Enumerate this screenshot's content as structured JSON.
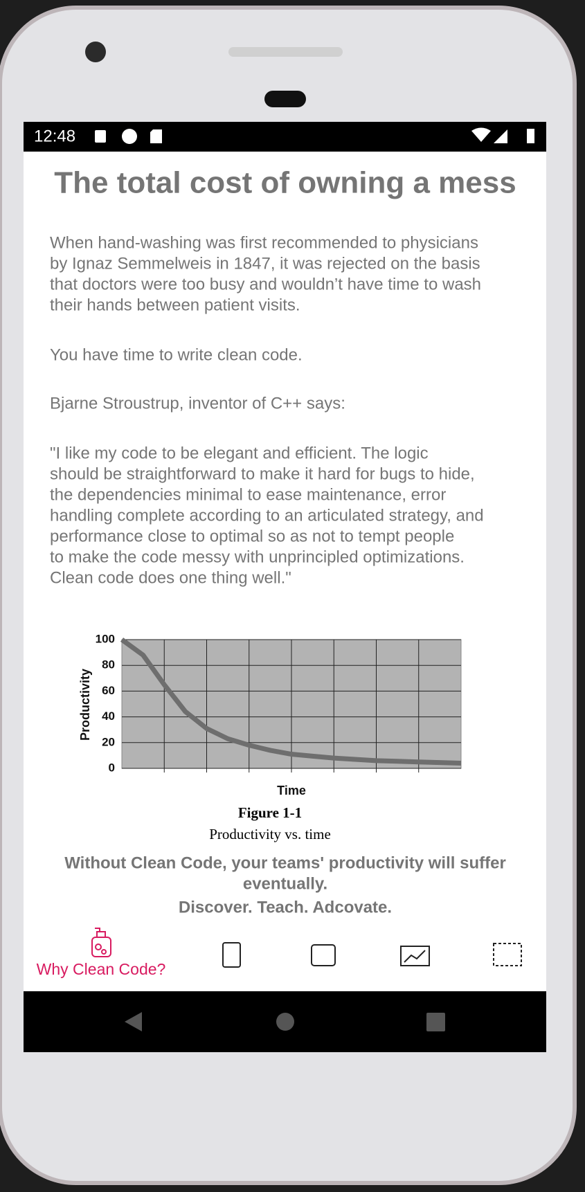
{
  "status_bar": {
    "time": "12:48"
  },
  "title": "The total cost of owning a mess",
  "paragraphs": [
    [
      "When hand-washing was first recommended to physicians",
      "by Ignaz Semmelweis in 1847, it was rejected on the basis",
      "that doctors were too busy and wouldn’t have time to wash",
      "their hands between patient visits."
    ],
    [
      "You have time to write clean code."
    ],
    [
      "Bjarne Stroustrup, inventor of C++ says:"
    ],
    [
      "\"I like my code to be elegant and efficient. The logic",
      "should be straightforward to make it hard for bugs to hide,",
      "the dependencies minimal to ease maintenance, error",
      "handling complete according to an articulated strategy, and",
      "performance close to optimal so as not to tempt people",
      "to make the code messy with unprincipled optimizations.",
      "Clean code does one thing well.\""
    ]
  ],
  "figure": {
    "type": "line",
    "ylabel": "Productivity",
    "xlabel": "Time",
    "ylim": [
      0,
      100
    ],
    "yticks": [
      0,
      20,
      40,
      60,
      80,
      100
    ],
    "values": [
      100,
      88,
      65,
      44,
      31,
      23,
      18,
      14,
      11,
      9.5,
      8,
      7,
      6,
      5.5,
      5,
      4.5,
      4
    ],
    "color": "#6e6e6e",
    "grid": true,
    "caption_label": "Figure 1-1",
    "caption": "Productivity vs. time"
  },
  "tagline": [
    "Without Clean Code, your teams' productivity will suffer",
    "eventually.",
    "Discover. Teach. Adcovate."
  ],
  "bottom_nav": {
    "active_label": "Why Clean Code?"
  }
}
